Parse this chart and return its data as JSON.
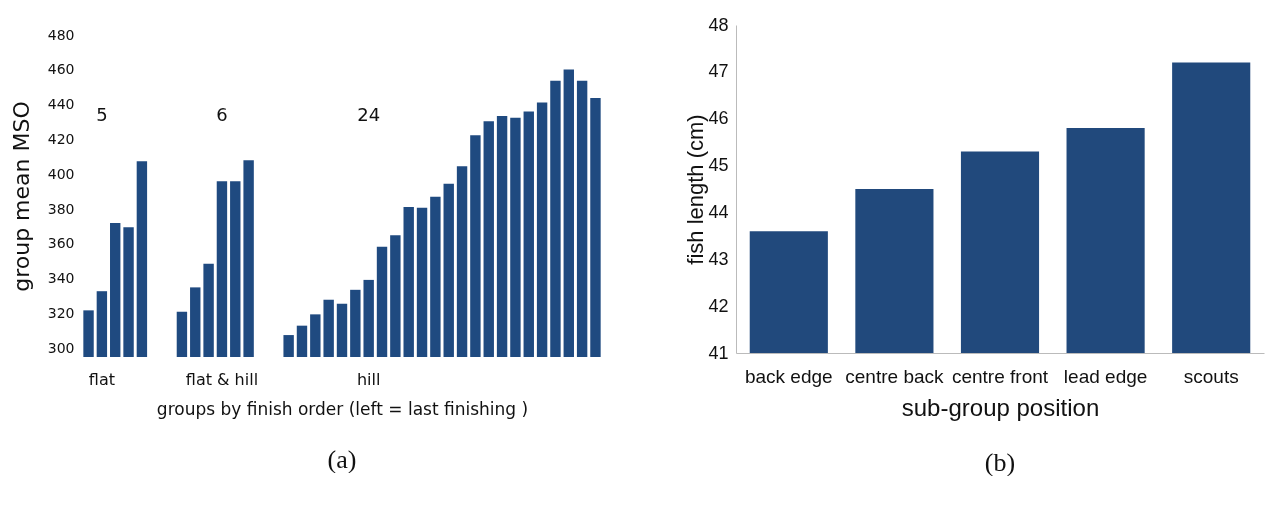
{
  "chart_data": [
    {
      "type": "bar",
      "xlabel": "groups by finish order  (left = last finishing )",
      "ylabel": "group mean MSO",
      "categories": [
        null,
        "flat",
        null,
        null,
        null,
        null,
        null,
        null,
        null,
        null,
        "flat & hill",
        null,
        null,
        null,
        null,
        null,
        null,
        null,
        null,
        null,
        null,
        "hill",
        null,
        null,
        null,
        null,
        null,
        null,
        null,
        null,
        null,
        null,
        null,
        null,
        null,
        null,
        null,
        null,
        null
      ],
      "values": [
        321.8,
        332.8,
        372,
        369.5,
        407.4,
        null,
        null,
        321,
        335,
        348.6,
        396,
        396,
        408,
        null,
        null,
        307.6,
        313,
        319.5,
        327.9,
        325.6,
        333.6,
        339.3,
        358.3,
        365,
        381.2,
        380.8,
        387.1,
        394.5,
        404.6,
        422.4,
        430.4,
        433.4,
        432.4,
        436,
        441.2,
        453.7,
        460.2,
        453.7,
        443.8
      ],
      "color": "#1f4a80",
      "ylim": [
        295,
        480
      ],
      "yticks": [
        300,
        320,
        340,
        360,
        380,
        400,
        420,
        440,
        460,
        480
      ],
      "annotations": [
        "(a)",
        "5",
        "6",
        "24"
      ]
    },
    {
      "type": "bar",
      "xlabel": "sub-group position",
      "ylabel": "fish length (cm)",
      "categories": [
        "back edge",
        "centre back",
        "centre front",
        "lead edge",
        "scouts"
      ],
      "values": [
        43.6,
        44.5,
        45.3,
        45.8,
        47.2
      ],
      "color": "#21497c",
      "ylim": [
        41,
        48
      ],
      "yticks": [
        41,
        42,
        43,
        44,
        45,
        46,
        47,
        48
      ],
      "annotations": [
        "(b)"
      ]
    }
  ]
}
